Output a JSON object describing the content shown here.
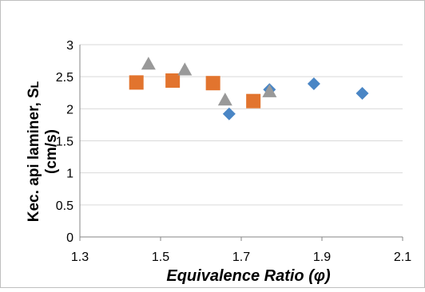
{
  "chart_data": {
    "type": "scatter",
    "title": "",
    "xlabel": "Equivalence Ratio (φ)",
    "ylabel_main": "Kec. api laminer, S",
    "ylabel_sub": "L",
    "ylabel_unit": "(cm/s)",
    "xlim": [
      1.3,
      2.1
    ],
    "ylim": [
      0,
      3
    ],
    "x_ticks": [
      1.3,
      1.5,
      1.7,
      1.9,
      2.1
    ],
    "x_tick_labels": [
      "1.3",
      "1.5",
      "1.7",
      "1.9",
      "2.1"
    ],
    "y_ticks": [
      0,
      0.5,
      1,
      1.5,
      2,
      2.5,
      3
    ],
    "y_tick_labels": [
      "0",
      "0.5",
      "1",
      "1.5",
      "2",
      "2.5",
      "3"
    ],
    "grid": true,
    "legend": "none",
    "series": [
      {
        "marker": "diamond",
        "color": "#4A86C5",
        "x": [
          1.67,
          1.77,
          1.88,
          2.0
        ],
        "y": [
          1.92,
          2.3,
          2.39,
          2.24
        ]
      },
      {
        "marker": "square",
        "color": "#E2742E",
        "x": [
          1.44,
          1.53,
          1.63,
          1.73
        ],
        "y": [
          2.41,
          2.44,
          2.4,
          2.12
        ]
      },
      {
        "marker": "triangle",
        "color": "#999999",
        "x": [
          1.47,
          1.56,
          1.66,
          1.77
        ],
        "y": [
          2.7,
          2.61,
          2.14,
          2.27
        ]
      }
    ]
  }
}
